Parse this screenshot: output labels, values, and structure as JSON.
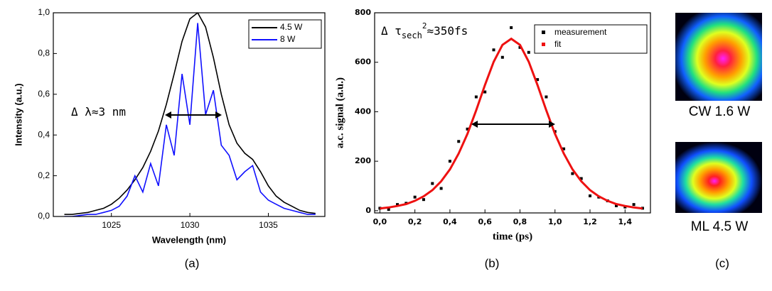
{
  "chart_data": [
    {
      "type": "line",
      "ylabel": "Intensity (a.u.)",
      "xlabel": "Wavelength (nm)",
      "xlim": [
        1021.3,
        1038.6
      ],
      "ylim": [
        0,
        1.0
      ],
      "xticks": [
        1025,
        1030,
        1035
      ],
      "yticks": [
        {
          "value": 0,
          "label": "0,0"
        },
        {
          "value": 0.2,
          "label": "0,2"
        },
        {
          "value": 0.4,
          "label": "0,4"
        },
        {
          "value": 0.6,
          "label": "0,6"
        },
        {
          "value": 0.8,
          "label": "0,8"
        },
        {
          "value": 1.0,
          "label": "1,0"
        }
      ],
      "legend": "upper right",
      "annotation": [
        "Δ λ≈3 nm"
      ],
      "x": [
        1022,
        1022.5,
        1023,
        1023.5,
        1024,
        1024.5,
        1025,
        1025.5,
        1026,
        1026.5,
        1027,
        1027.5,
        1028,
        1028.5,
        1029,
        1029.5,
        1030,
        1030.5,
        1031,
        1031.5,
        1032,
        1032.5,
        1033,
        1033.5,
        1034,
        1034.5,
        1035,
        1035.5,
        1036,
        1036.5,
        1037,
        1037.5,
        1038
      ],
      "series": [
        {
          "name": "4.5 W",
          "color": "#000000",
          "mode": "line",
          "values": [
            0.01,
            0.01,
            0.015,
            0.02,
            0.03,
            0.04,
            0.06,
            0.09,
            0.13,
            0.18,
            0.24,
            0.32,
            0.42,
            0.55,
            0.7,
            0.86,
            0.97,
            1.0,
            0.93,
            0.78,
            0.6,
            0.45,
            0.36,
            0.31,
            0.28,
            0.22,
            0.15,
            0.1,
            0.07,
            0.05,
            0.03,
            0.02,
            0.015
          ]
        },
        {
          "name": "8 W",
          "color": "#1010ff",
          "mode": "line",
          "values": [
            0,
            0,
            0.005,
            0.01,
            0.01,
            0.02,
            0.03,
            0.05,
            0.1,
            0.2,
            0.12,
            0.26,
            0.15,
            0.45,
            0.3,
            0.7,
            0.45,
            0.95,
            0.5,
            0.62,
            0.35,
            0.3,
            0.18,
            0.22,
            0.25,
            0.12,
            0.08,
            0.06,
            0.04,
            0.03,
            0.02,
            0.01,
            0.01
          ]
        }
      ]
    },
    {
      "type": "scatter",
      "ylabel": "a.c. signal (a.u.)",
      "xlabel": "time (ps)",
      "xlim": [
        -0.03,
        1.545
      ],
      "ylim": [
        -9,
        800
      ],
      "xticks": [
        {
          "value": 0,
          "label": "0,0"
        },
        {
          "value": 0.2,
          "label": "0,2"
        },
        {
          "value": 0.4,
          "label": "0,4"
        },
        {
          "value": 0.6,
          "label": "0,6"
        },
        {
          "value": 0.8,
          "label": "0,8"
        },
        {
          "value": 1.0,
          "label": "1,0"
        },
        {
          "value": 1.2,
          "label": "1,2"
        },
        {
          "value": 1.4,
          "label": "1,4"
        }
      ],
      "yticks": [
        0,
        200,
        400,
        600,
        800
      ],
      "legend": "upper right",
      "annotation": [
        "Δ τ",
        "sech",
        "2",
        "≈350fs"
      ],
      "x": [
        0,
        0.05,
        0.1,
        0.15,
        0.2,
        0.25,
        0.3,
        0.35,
        0.4,
        0.45,
        0.5,
        0.55,
        0.6,
        0.65,
        0.7,
        0.75,
        0.8,
        0.85,
        0.9,
        0.95,
        1.0,
        1.05,
        1.1,
        1.15,
        1.2,
        1.25,
        1.3,
        1.35,
        1.4,
        1.45,
        1.5
      ],
      "series": [
        {
          "name": "measurement",
          "color": "#000000",
          "mode": "markers",
          "values": [
            10,
            5,
            25,
            30,
            55,
            45,
            110,
            90,
            200,
            280,
            330,
            460,
            480,
            650,
            620,
            740,
            660,
            640,
            530,
            460,
            320,
            250,
            150,
            130,
            60,
            55,
            40,
            20,
            15,
            25,
            10
          ]
        },
        {
          "name": "fit",
          "color": "#ee1111",
          "mode": "line",
          "values": [
            9,
            13,
            19,
            27,
            40,
            58,
            83,
            119,
            167,
            231,
            311,
            406,
            508,
            602,
            670,
            695,
            670,
            602,
            508,
            406,
            311,
            231,
            167,
            119,
            83,
            58,
            40,
            27,
            19,
            13,
            9
          ]
        }
      ]
    }
  ],
  "figure": {
    "panel_labels": [
      "(a)",
      "(b)",
      "(c)"
    ],
    "captions": [
      "CW  1.6 W",
      "ML  4.5 W"
    ]
  }
}
